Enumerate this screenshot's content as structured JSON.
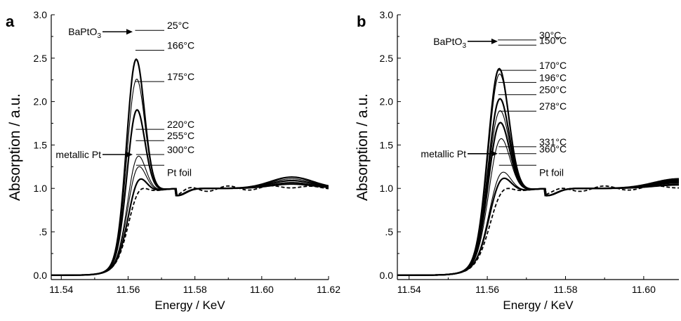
{
  "chart_data": [
    {
      "panel": "a",
      "type": "line",
      "xlabel": "Energy / KeV",
      "ylabel": "Absorption / a.u.",
      "xlim": [
        11.537,
        11.62
      ],
      "ylim": [
        -0.05,
        3.0
      ],
      "xticks": [
        11.54,
        11.56,
        11.58,
        11.6,
        11.62
      ],
      "xtick_labels": [
        "11.54",
        "11.56",
        "11.58",
        "11.60",
        "11.62"
      ],
      "yticks": [
        0.0,
        0.5,
        1.0,
        1.5,
        2.0,
        2.5,
        3.0
      ],
      "ytick_labels": [
        "0.0",
        ".5",
        "1.0",
        "1.5",
        "2.0",
        "2.5",
        "3.0"
      ],
      "series": [
        {
          "name": "25°C",
          "peak_x": 11.5621,
          "peak_y": 2.82,
          "late_amp": 0.13,
          "weight": "heavy"
        },
        {
          "name": "166°C",
          "peak_x": 11.5622,
          "peak_y": 2.59,
          "late_amp": 0.11,
          "weight": "thin"
        },
        {
          "name": "175°C",
          "peak_x": 11.5622,
          "peak_y": 2.23,
          "late_amp": 0.09,
          "weight": "heavy"
        },
        {
          "name": "220°C",
          "peak_x": 11.5623,
          "peak_y": 1.68,
          "late_amp": 0.07,
          "weight": "thin"
        },
        {
          "name": "255°C",
          "peak_x": 11.5623,
          "peak_y": 1.55,
          "late_amp": 0.06,
          "weight": "thin"
        },
        {
          "name": "300°C",
          "peak_x": 11.5624,
          "peak_y": 1.39,
          "late_amp": 0.05,
          "weight": "heavy"
        },
        {
          "name": "Pt foil",
          "peak_x": 11.5624,
          "peak_y": 1.25,
          "late_amp": 0.02,
          "weight": "dashed"
        }
      ],
      "annotations": [
        {
          "text": "BaPtO",
          "sub": "3",
          "target_series": 0
        },
        {
          "text": "metallic Pt",
          "sub": "",
          "target_series": 5
        }
      ]
    },
    {
      "panel": "b",
      "type": "line",
      "xlabel": "Energy / KeV",
      "ylabel": "Absorption / a.u.",
      "xlim": [
        11.537,
        11.609
      ],
      "ylim": [
        -0.05,
        3.0
      ],
      "xticks": [
        11.54,
        11.56,
        11.58,
        11.6
      ],
      "xtick_labels": [
        "11.54",
        "11.56",
        "11.58",
        "11.60"
      ],
      "yticks": [
        0.0,
        0.5,
        1.0,
        1.5,
        2.0,
        2.5,
        3.0
      ],
      "ytick_labels": [
        "0.0",
        ".5",
        "1.0",
        "1.5",
        "2.0",
        "2.5",
        "3.0"
      ],
      "series": [
        {
          "name": "30°C",
          "peak_x": 11.5627,
          "peak_y": 2.71,
          "late_amp": 0.11,
          "weight": "heavy"
        },
        {
          "name": "150°C",
          "peak_x": 11.5628,
          "peak_y": 2.65,
          "late_amp": 0.1,
          "weight": "thin"
        },
        {
          "name": "170°C",
          "peak_x": 11.5628,
          "peak_y": 2.36,
          "late_amp": 0.09,
          "weight": "heavy"
        },
        {
          "name": "196°C",
          "peak_x": 11.5628,
          "peak_y": 2.22,
          "late_amp": 0.08,
          "weight": "thin"
        },
        {
          "name": "250°C",
          "peak_x": 11.5628,
          "peak_y": 2.08,
          "late_amp": 0.07,
          "weight": "heavy"
        },
        {
          "name": "278°C",
          "peak_x": 11.5629,
          "peak_y": 1.89,
          "late_amp": 0.06,
          "weight": "thin"
        },
        {
          "name": "331°C",
          "peak_x": 11.5629,
          "peak_y": 1.48,
          "late_amp": 0.05,
          "weight": "thin"
        },
        {
          "name": "360°C",
          "peak_x": 11.5629,
          "peak_y": 1.4,
          "late_amp": 0.04,
          "weight": "heavy"
        },
        {
          "name": "Pt foil",
          "peak_x": 11.563,
          "peak_y": 1.25,
          "late_amp": 0.02,
          "weight": "dashed"
        }
      ],
      "annotations": [
        {
          "text": "BaPtO",
          "sub": "3",
          "target_series": 0
        },
        {
          "text": "metallic Pt",
          "sub": "",
          "target_series": 7
        }
      ]
    }
  ]
}
